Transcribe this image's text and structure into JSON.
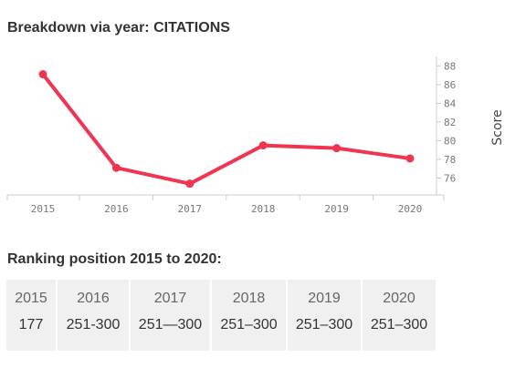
{
  "chart_data": {
    "type": "line",
    "title": "Breakdown via year: CITATIONS",
    "xlabel": "",
    "ylabel": "Score",
    "categories": [
      "2015",
      "2016",
      "2017",
      "2018",
      "2019",
      "2020"
    ],
    "series": [
      {
        "values": [
          87.1,
          77.1,
          75.4,
          79.5,
          79.2,
          78.1
        ],
        "color": "#ee3552"
      }
    ],
    "yticks": [
      76,
      78,
      80,
      82,
      84,
      86,
      88
    ],
    "ylim": [
      74.2,
      89
    ],
    "y_axis_side": "right",
    "grid": false,
    "legend": "none"
  },
  "ranking": {
    "title": "Ranking position 2015 to 2020:",
    "cells": [
      {
        "year": "2015",
        "value": "177"
      },
      {
        "year": "2016",
        "value": "251-300"
      },
      {
        "year": "2017",
        "value": "251—300"
      },
      {
        "year": "2018",
        "value": "251–300"
      },
      {
        "year": "2019",
        "value": "251–300"
      },
      {
        "year": "2020",
        "value": "251–300"
      }
    ]
  }
}
